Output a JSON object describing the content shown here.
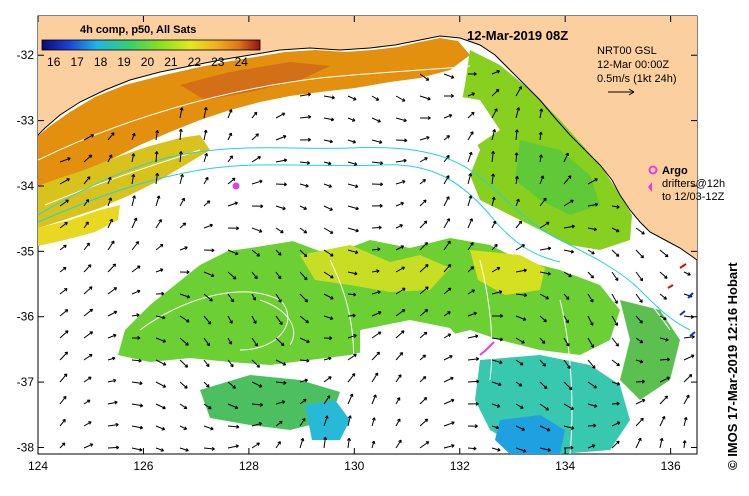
{
  "map": {
    "date_title": "12-Mar-2019 08Z",
    "colorbar": {
      "title": "4h comp, p50, All Sats",
      "tick_labels": [
        "16",
        "17",
        "18",
        "19",
        "20",
        "21",
        "22",
        "23",
        "24"
      ],
      "min": 15.5,
      "max": 24.8
    },
    "current_info": {
      "model": "NRT00 GSL",
      "time": "12-Mar 00:00Z",
      "scale": "0.5m/s (1kt 24h)"
    },
    "argo": {
      "label": "Argo",
      "drifters_line1": "drifters@12h",
      "drifters_line2": "to 12/03-12Z"
    },
    "x_axis": {
      "labels": [
        "124",
        "126",
        "128",
        "130",
        "132",
        "134",
        "136"
      ],
      "min": 124,
      "max": 136.5
    },
    "y_axis": {
      "labels": [
        "-32",
        "-33",
        "-34",
        "-35",
        "-36",
        "-37",
        "-38"
      ],
      "min": -38.1,
      "max": -31.4
    },
    "credit": "© IMOS 17-Mar-2019 12:16 Hobart",
    "colors": {
      "land": "#fccf9e",
      "cloud": "#ffffff",
      "contour": "#ffffff",
      "current_line": "#22d3e0",
      "argo": "#e040e0",
      "arrow": "#000000"
    }
  }
}
